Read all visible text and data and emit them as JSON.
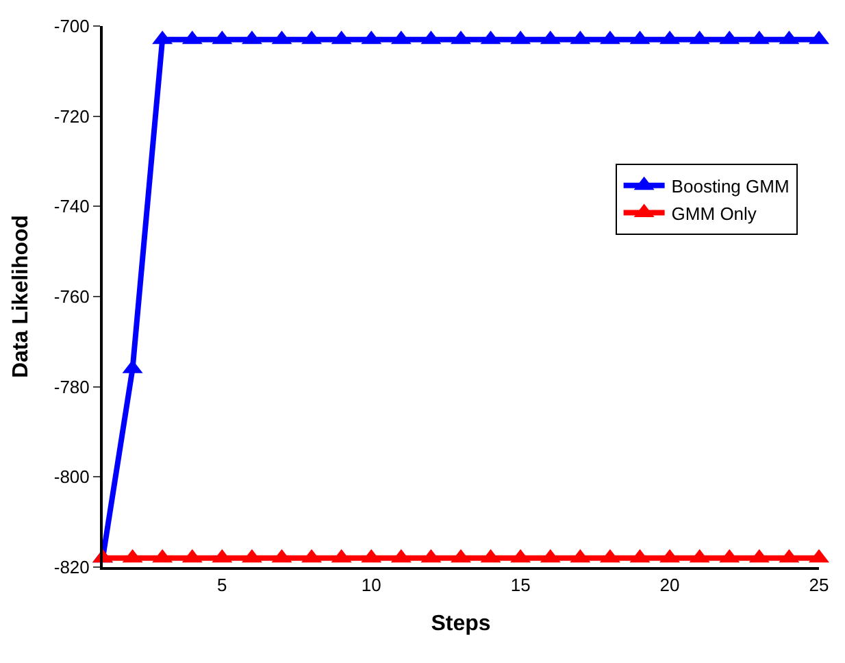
{
  "chart_data": {
    "type": "line",
    "xlabel": "Steps",
    "ylabel": "Data Likelihood",
    "x": [
      1,
      2,
      3,
      4,
      5,
      6,
      7,
      8,
      9,
      10,
      11,
      12,
      13,
      14,
      15,
      16,
      17,
      18,
      19,
      20,
      21,
      22,
      23,
      24,
      25
    ],
    "series": [
      {
        "name": "Boosting GMM",
        "color": "#0000ff",
        "values": [
          -818,
          -776,
          -703,
          -703,
          -703,
          -703,
          -703,
          -703,
          -703,
          -703,
          -703,
          -703,
          -703,
          -703,
          -703,
          -703,
          -703,
          -703,
          -703,
          -703,
          -703,
          -703,
          -703,
          -703,
          -703
        ]
      },
      {
        "name": "GMM Only",
        "color": "#ff0000",
        "values": [
          -818,
          -818,
          -818,
          -818,
          -818,
          -818,
          -818,
          -818,
          -818,
          -818,
          -818,
          -818,
          -818,
          -818,
          -818,
          -818,
          -818,
          -818,
          -818,
          -818,
          -818,
          -818,
          -818,
          -818,
          -818
        ]
      }
    ],
    "xlim": [
      1,
      25
    ],
    "xticks": [
      5,
      10,
      15,
      20,
      25
    ],
    "ylim": [
      -820,
      -700
    ],
    "yticks": [
      -820,
      -800,
      -780,
      -760,
      -740,
      -720,
      -700
    ],
    "legend": "right",
    "marker": "triangle",
    "line_style": "solid"
  }
}
